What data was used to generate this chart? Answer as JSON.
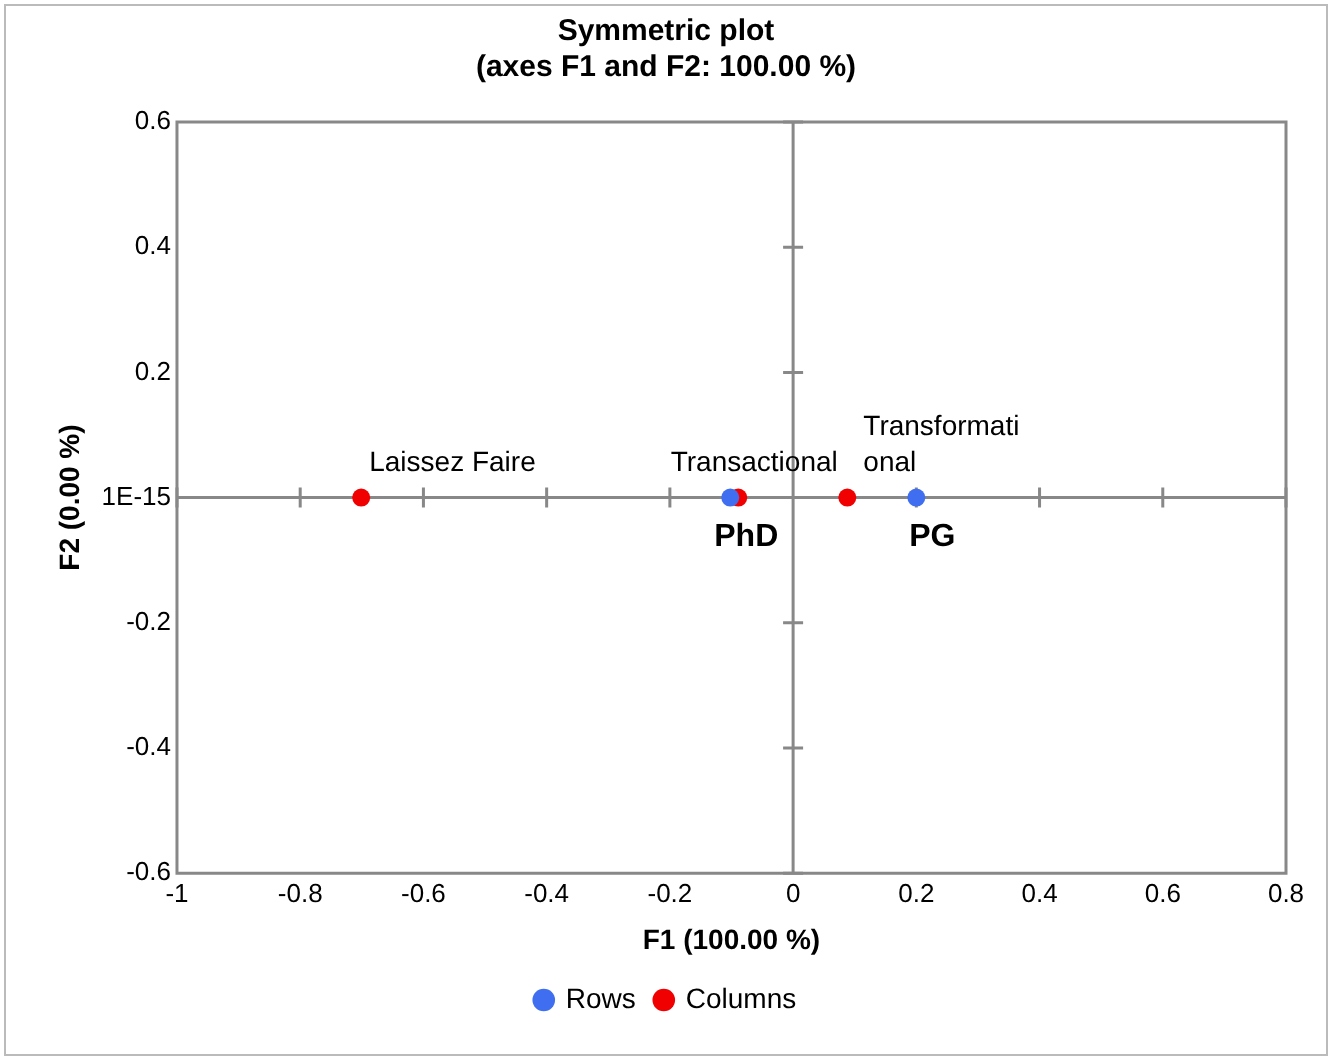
{
  "chart_data": {
    "type": "scatter",
    "title": "Symmetric plot\n(axes F1 and F2: 100.00 %)",
    "xlabel": "F1 (100.00 %)",
    "ylabel": "F2 (0.00 %)",
    "series": [
      {
        "name": "Rows",
        "color": "#3f6ff0",
        "x": [
          -0.102,
          0.2
        ],
        "values": [
          0,
          0
        ]
      },
      {
        "name": "Columns",
        "color": "#f00000",
        "x": [
          -0.701,
          -0.089,
          0.088
        ],
        "values": [
          0,
          0,
          0
        ]
      }
    ],
    "annotations": [
      {
        "text": "PhD",
        "x": -0.102,
        "y": 0
      },
      {
        "text": "PG",
        "x": 0.2,
        "y": 0
      },
      {
        "text": "Laissez Faire",
        "x": -0.701,
        "y": 0
      },
      {
        "text": "Transactional",
        "x": -0.089,
        "y": 0
      },
      {
        "text": "Transformati\nonal",
        "x": 0.088,
        "y": 0
      }
    ],
    "xlim": [
      -1,
      0.8
    ],
    "xticks": [
      -1,
      -0.8,
      -0.6,
      -0.4,
      -0.2,
      0,
      0.2,
      0.4,
      0.6,
      0.8
    ],
    "ylim": [
      -0.6,
      0.6
    ],
    "yticks": [
      -0.6,
      -0.4,
      -0.2,
      {
        "value": 0,
        "label": "1E-15"
      },
      0.2,
      0.4,
      0.6
    ],
    "legend": "bottom",
    "marker": "circle"
  }
}
